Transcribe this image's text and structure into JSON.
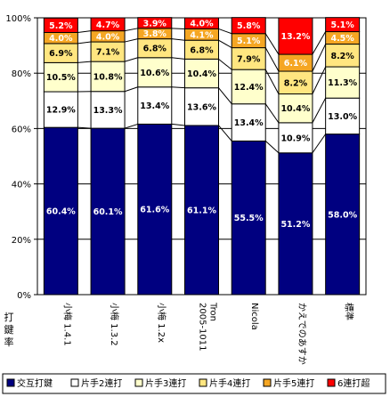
{
  "chart_data": {
    "type": "bar",
    "stacked": true,
    "ylabel": "打鍵率",
    "ylim": [
      0,
      100
    ],
    "yticks": [
      "0%",
      "20%",
      "40%",
      "60%",
      "80%",
      "100%"
    ],
    "grid": true,
    "legend_position": "bottom",
    "categories": [
      "小梅 1.4.1",
      "小梅 1.3.2",
      "小梅 1.2x",
      "Tron 2005-1011",
      "Nicola",
      "かえでのあすか",
      "標準"
    ],
    "series": [
      {
        "name": "交互打鍵",
        "color": "#000080",
        "label_color": "#ffffff",
        "values": [
          60.4,
          60.1,
          61.6,
          61.1,
          55.5,
          51.2,
          58.0
        ],
        "labels": [
          "60.4%",
          "60.1%",
          "61.6%",
          "61.1%",
          "55.5%",
          "51.2%",
          "58.0%"
        ]
      },
      {
        "name": "片手2連打",
        "color": "#ffffff",
        "label_color": "#000000",
        "values": [
          12.9,
          13.3,
          13.4,
          13.6,
          13.4,
          10.9,
          13.0
        ],
        "labels": [
          "12.9%",
          "13.3%",
          "13.4%",
          "13.6%",
          "13.4%",
          "10.9%",
          "13.0%"
        ]
      },
      {
        "name": "片手3連打",
        "color": "#ffffcc",
        "label_color": "#000000",
        "values": [
          10.5,
          10.8,
          10.6,
          10.4,
          12.4,
          10.4,
          11.3
        ],
        "labels": [
          "10.5%",
          "10.8%",
          "10.6%",
          "10.4%",
          "12.4%",
          "10.4%",
          "11.3%"
        ]
      },
      {
        "name": "片手4連打",
        "color": "#ffe680",
        "label_color": "#000000",
        "values": [
          6.9,
          7.1,
          6.8,
          6.8,
          7.9,
          8.2,
          8.2
        ],
        "labels": [
          "6.9%",
          "7.1%",
          "6.8%",
          "6.8%",
          "7.9%",
          "8.2%",
          "8.2%"
        ]
      },
      {
        "name": "片手5連打",
        "color": "#f5a623",
        "label_color": "#ffffff",
        "values": [
          4.0,
          4.0,
          3.8,
          4.1,
          5.1,
          6.1,
          4.5
        ],
        "labels": [
          "4.0%",
          "4.0%",
          "3.8%",
          "4.1%",
          "5.1%",
          "6.1%",
          "4.5%"
        ]
      },
      {
        "name": "6連打超",
        "color": "#ff0000",
        "label_color": "#ffffff",
        "values": [
          5.2,
          4.7,
          3.9,
          4.0,
          5.8,
          13.2,
          5.1
        ],
        "labels": [
          "5.2%",
          "4.7%",
          "3.9%",
          "4.0%",
          "5.8%",
          "13.2%",
          "5.1%"
        ]
      }
    ]
  }
}
